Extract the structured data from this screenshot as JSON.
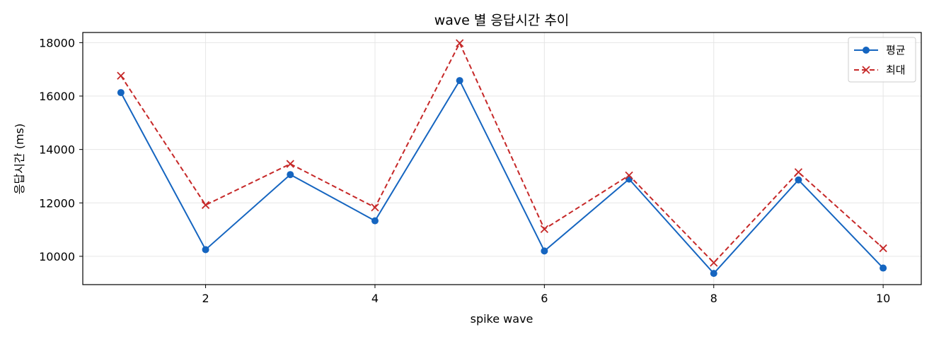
{
  "chart_data": {
    "type": "line",
    "title": "wave 별 응답시간 추이",
    "xlabel": "spike wave",
    "ylabel": "응답시간 (ms)",
    "x": [
      1,
      2,
      3,
      4,
      5,
      6,
      7,
      8,
      9,
      10
    ],
    "xlim": [
      0.55,
      10.45
    ],
    "ylim": [
      8940,
      18380
    ],
    "xticks": [
      2,
      4,
      6,
      8,
      10
    ],
    "yticks": [
      10000,
      12000,
      14000,
      16000,
      18000
    ],
    "xtick_labels": [
      "2",
      "4",
      "6",
      "8",
      "10"
    ],
    "ytick_labels": [
      "10000",
      "12000",
      "14000",
      "16000",
      "18000"
    ],
    "grid": true,
    "legend_position": "top-right",
    "series": [
      {
        "name": "평균",
        "values": [
          16130,
          10250,
          13060,
          11330,
          16580,
          10200,
          12890,
          9360,
          12860,
          9560
        ],
        "color": "#1565c0",
        "marker": "circle",
        "linestyle": "solid"
      },
      {
        "name": "최대",
        "values": [
          16760,
          11920,
          13460,
          11830,
          17980,
          11020,
          13030,
          9760,
          13150,
          10300
        ],
        "color": "#c62828",
        "marker": "x",
        "linestyle": "dashed"
      }
    ]
  }
}
